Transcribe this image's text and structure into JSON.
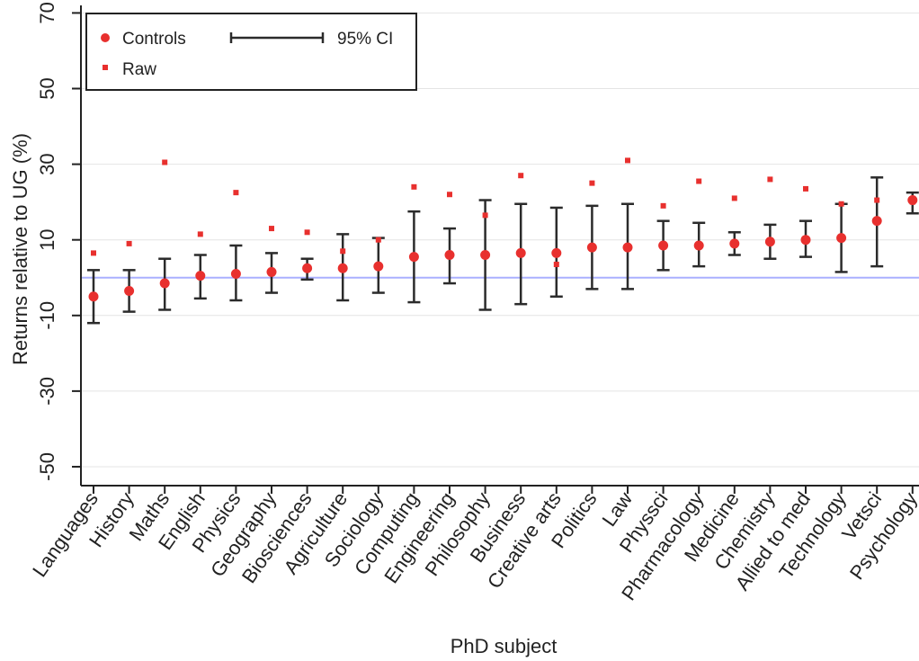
{
  "chart_data": {
    "type": "scatter",
    "xlabel": "PhD subject",
    "ylabel": "Returns relative to UG (%)",
    "ylim": [
      -55,
      72
    ],
    "yticks": [
      "-50",
      "-30",
      "-10",
      "10",
      "30",
      "50",
      "70"
    ],
    "reference_line": 0,
    "grid": "horizontal",
    "legend_position": "top-left",
    "legend": {
      "controls_label": "Controls",
      "raw_label": "Raw",
      "ci_label": "95% CI"
    },
    "colors": {
      "points": "#e8302e",
      "error_bars": "#2b2b2b",
      "reference_line": "#aab0ff",
      "grid": "#e4e4e4",
      "axis": "#222222"
    },
    "categories": [
      "Languages",
      "History",
      "Maths",
      "English",
      "Physics",
      "Geography",
      "Biosciences",
      "Agriculture",
      "Sociology",
      "Computing",
      "Engineering",
      "Philosophy",
      "Business",
      "Creative arts",
      "Politics",
      "Law",
      "Physsci",
      "Pharmacology",
      "Medicine",
      "Chemistry",
      "Allied to med",
      "Technology",
      "Vetsci",
      "Psychology"
    ],
    "series": [
      {
        "name": "Controls",
        "values": [
          -5,
          -3.5,
          -1.5,
          0.5,
          1,
          1.5,
          2.5,
          2.5,
          3,
          5.5,
          6,
          6,
          6.5,
          6.5,
          8,
          8,
          8.5,
          8.5,
          9,
          9.5,
          10,
          10.5,
          15,
          20.5
        ]
      },
      {
        "name": "Raw",
        "values": [
          6.5,
          9,
          30.5,
          11.5,
          22.5,
          13,
          12,
          7,
          10,
          24,
          22,
          16.5,
          27,
          3.5,
          25,
          31,
          19,
          25.5,
          21,
          26,
          23.5,
          19.5,
          20.5,
          20
        ]
      },
      {
        "name": "95% CI",
        "lower": [
          -12,
          -9,
          -8.5,
          -5.5,
          -6,
          -4,
          -0.5,
          -6,
          -4,
          -6.5,
          -1.5,
          -8.5,
          -7,
          -5,
          -3,
          -3,
          2,
          3,
          6,
          5,
          5.5,
          1.5,
          3,
          17
        ],
        "upper": [
          2,
          2,
          5,
          6,
          8.5,
          6.5,
          5,
          11.5,
          10.5,
          17.5,
          13,
          20.5,
          19.5,
          18.5,
          19,
          19.5,
          15,
          14.5,
          12,
          14,
          15,
          19.5,
          26.5,
          22.5
        ]
      }
    ]
  }
}
